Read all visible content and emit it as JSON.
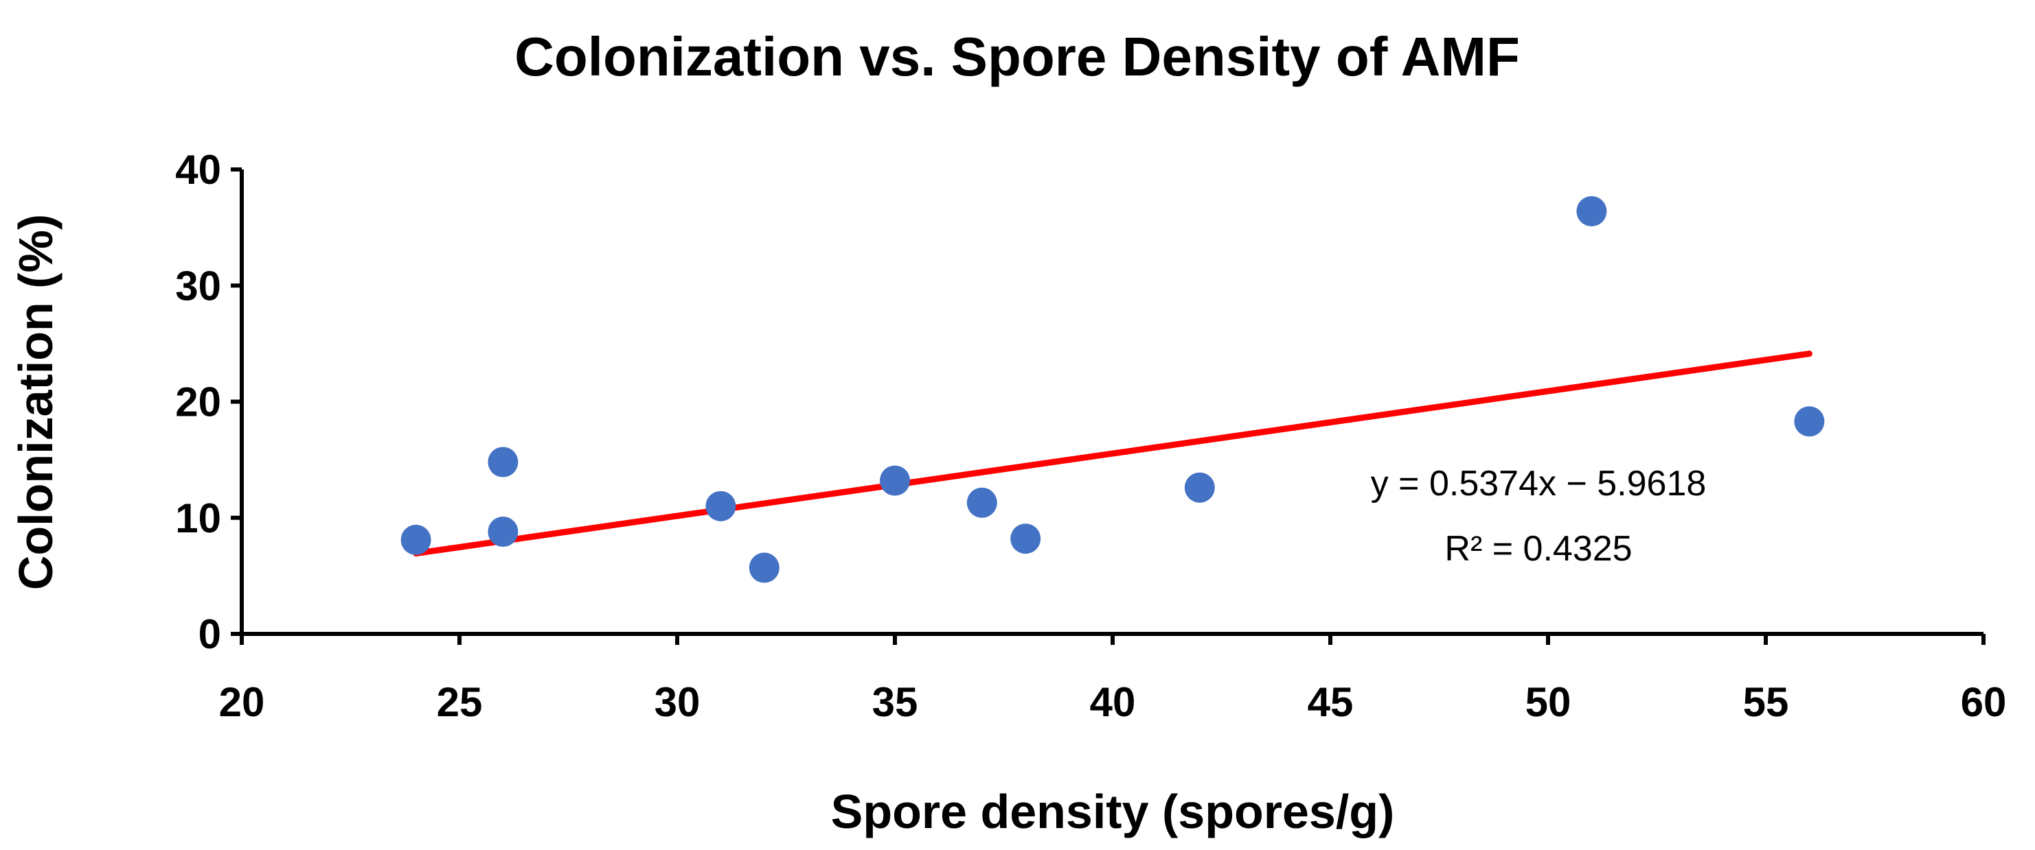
{
  "chart_data": {
    "type": "scatter",
    "title": "Colonization vs. Spore Density of AMF",
    "xlabel": "Spore density (spores/g)",
    "ylabel": "Colonization (%)",
    "xlim": [
      20,
      60
    ],
    "ylim": [
      0,
      40
    ],
    "xticks": [
      20,
      25,
      30,
      35,
      40,
      45,
      50,
      55,
      60
    ],
    "yticks": [
      0,
      10,
      20,
      30,
      40
    ],
    "grid": false,
    "series": [
      {
        "name": "Colonization",
        "color": "#4472C4",
        "points": [
          {
            "x": 24,
            "y": 8.1
          },
          {
            "x": 26,
            "y": 8.8
          },
          {
            "x": 26,
            "y": 14.8
          },
          {
            "x": 31,
            "y": 11.0
          },
          {
            "x": 32,
            "y": 5.7
          },
          {
            "x": 35,
            "y": 13.2
          },
          {
            "x": 37,
            "y": 11.3
          },
          {
            "x": 38,
            "y": 8.2
          },
          {
            "x": 42,
            "y": 12.6
          },
          {
            "x": 51,
            "y": 36.4
          },
          {
            "x": 56,
            "y": 18.3
          }
        ]
      }
    ],
    "trendline": {
      "type": "linear",
      "color": "#FF0000",
      "slope": 0.5374,
      "intercept": -5.9618,
      "x_range": [
        24,
        56
      ],
      "equation": "y = 0.5374x − 5.9618",
      "r_squared": "R² = 0.4325"
    }
  }
}
